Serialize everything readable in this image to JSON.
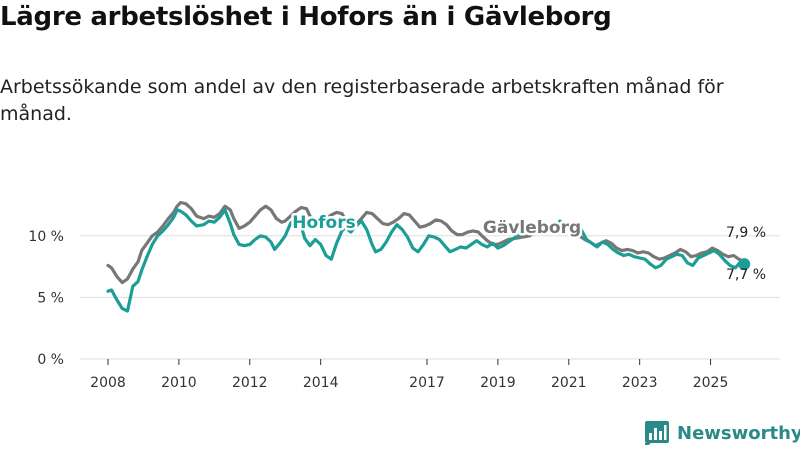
{
  "title": "Lägre arbetslöshet i Hofors än i Gävleborg",
  "subtitle": "Arbetssökande som andel av den registerbaserade arbetskraften månad för månad.",
  "brand": {
    "name": "Newsworthy",
    "color": "#2a8a89",
    "icon": "bar-chart-logo-icon"
  },
  "chart_data": {
    "type": "line",
    "title": "Lägre arbetslöshet i Hofors än i Gävleborg",
    "xlabel": "",
    "ylabel": "",
    "xlim": [
      2008,
      2026
    ],
    "ylim": [
      0,
      12.5
    ],
    "y_ticks": [
      {
        "value": 0,
        "label": "0 %"
      },
      {
        "value": 5,
        "label": "5 %"
      },
      {
        "value": 10,
        "label": "10 %"
      }
    ],
    "x_ticks": [
      {
        "value": 2008,
        "label": "2008"
      },
      {
        "value": 2010,
        "label": "2010"
      },
      {
        "value": 2012,
        "label": "2012"
      },
      {
        "value": 2014,
        "label": "2014"
      },
      {
        "value": 2017,
        "label": "2017"
      },
      {
        "value": 2019,
        "label": "2019"
      },
      {
        "value": 2021,
        "label": "2021"
      },
      {
        "value": 2023,
        "label": "2023"
      },
      {
        "value": 2025,
        "label": "2025"
      }
    ],
    "grid": true,
    "series": [
      {
        "name": "Gävleborg",
        "color": "#777777",
        "label_at": [
          2008.0,
          10.0
        ],
        "end_label": "7,9 %",
        "points": [
          [
            2008.0,
            7.6
          ],
          [
            2008.1,
            7.4
          ],
          [
            2008.25,
            6.7
          ],
          [
            2008.4,
            6.2
          ],
          [
            2008.55,
            6.5
          ],
          [
            2008.7,
            7.3
          ],
          [
            2008.85,
            7.9
          ],
          [
            2008.95,
            8.8
          ],
          [
            2009.1,
            9.4
          ],
          [
            2009.25,
            10.0
          ],
          [
            2009.4,
            10.3
          ],
          [
            2009.55,
            10.8
          ],
          [
            2009.7,
            11.4
          ],
          [
            2009.85,
            11.9
          ],
          [
            2009.95,
            12.4
          ],
          [
            2010.05,
            12.7
          ],
          [
            2010.2,
            12.6
          ],
          [
            2010.35,
            12.2
          ],
          [
            2010.5,
            11.6
          ],
          [
            2010.7,
            11.4
          ],
          [
            2010.85,
            11.6
          ],
          [
            2011.0,
            11.5
          ],
          [
            2011.15,
            11.8
          ],
          [
            2011.3,
            12.4
          ],
          [
            2011.45,
            12.1
          ],
          [
            2011.55,
            11.4
          ],
          [
            2011.7,
            10.6
          ],
          [
            2011.85,
            10.8
          ],
          [
            2012.0,
            11.1
          ],
          [
            2012.15,
            11.6
          ],
          [
            2012.3,
            12.1
          ],
          [
            2012.45,
            12.4
          ],
          [
            2012.6,
            12.1
          ],
          [
            2012.75,
            11.4
          ],
          [
            2012.9,
            11.1
          ],
          [
            2013.0,
            11.2
          ],
          [
            2013.15,
            11.6
          ],
          [
            2013.3,
            12.0
          ],
          [
            2013.45,
            12.3
          ],
          [
            2013.6,
            12.2
          ],
          [
            2013.7,
            11.6
          ],
          [
            2013.85,
            11.0
          ],
          [
            2014.0,
            11.2
          ],
          [
            2014.15,
            11.4
          ],
          [
            2014.3,
            11.7
          ],
          [
            2014.45,
            11.9
          ],
          [
            2014.6,
            11.8
          ],
          [
            2014.7,
            11.3
          ],
          [
            2014.85,
            10.9
          ],
          [
            2015.0,
            10.9
          ],
          [
            2015.15,
            11.4
          ],
          [
            2015.3,
            11.9
          ],
          [
            2015.45,
            11.8
          ],
          [
            2015.6,
            11.4
          ],
          [
            2015.75,
            11.0
          ],
          [
            2015.9,
            10.9
          ],
          [
            2016.05,
            11.1
          ],
          [
            2016.2,
            11.4
          ],
          [
            2016.35,
            11.8
          ],
          [
            2016.5,
            11.7
          ],
          [
            2016.65,
            11.2
          ],
          [
            2016.8,
            10.7
          ],
          [
            2016.95,
            10.8
          ],
          [
            2017.1,
            11.0
          ],
          [
            2017.25,
            11.3
          ],
          [
            2017.4,
            11.2
          ],
          [
            2017.55,
            10.9
          ],
          [
            2017.7,
            10.4
          ],
          [
            2017.85,
            10.1
          ],
          [
            2018.0,
            10.1
          ],
          [
            2018.15,
            10.3
          ],
          [
            2018.3,
            10.4
          ],
          [
            2018.45,
            10.3
          ],
          [
            2018.55,
            10.0
          ],
          [
            2018.7,
            9.6
          ],
          [
            2018.85,
            9.3
          ],
          [
            2019.0,
            9.3
          ],
          [
            2019.15,
            9.5
          ],
          [
            2019.3,
            9.7
          ],
          [
            2019.5,
            9.8
          ],
          [
            2019.7,
            9.9
          ],
          [
            2019.9,
            10.0
          ],
          [
            2020.1,
            10.4
          ],
          [
            2020.25,
            10.7
          ],
          [
            2020.4,
            10.7
          ],
          [
            2020.55,
            10.9
          ],
          [
            2020.7,
            10.6
          ],
          [
            2020.85,
            10.5
          ],
          [
            2021.0,
            10.6
          ],
          [
            2021.15,
            10.4
          ],
          [
            2021.3,
            10.0
          ],
          [
            2021.45,
            9.7
          ],
          [
            2021.6,
            9.5
          ],
          [
            2021.75,
            9.2
          ],
          [
            2021.9,
            9.4
          ],
          [
            2022.05,
            9.6
          ],
          [
            2022.2,
            9.4
          ],
          [
            2022.35,
            9.0
          ],
          [
            2022.5,
            8.8
          ],
          [
            2022.65,
            8.9
          ],
          [
            2022.8,
            8.8
          ],
          [
            2022.95,
            8.6
          ],
          [
            2023.1,
            8.7
          ],
          [
            2023.25,
            8.6
          ],
          [
            2023.4,
            8.3
          ],
          [
            2023.55,
            8.1
          ],
          [
            2023.7,
            8.2
          ],
          [
            2023.85,
            8.4
          ],
          [
            2024.0,
            8.6
          ],
          [
            2024.15,
            8.9
          ],
          [
            2024.3,
            8.7
          ],
          [
            2024.45,
            8.3
          ],
          [
            2024.6,
            8.4
          ],
          [
            2024.75,
            8.6
          ],
          [
            2024.9,
            8.7
          ],
          [
            2025.05,
            9.0
          ],
          [
            2025.2,
            8.8
          ],
          [
            2025.35,
            8.5
          ],
          [
            2025.5,
            8.3
          ],
          [
            2025.65,
            8.4
          ],
          [
            2025.8,
            8.1
          ],
          [
            2025.95,
            7.9
          ]
        ]
      },
      {
        "name": "Hofors",
        "color": "#1b9e96",
        "label_at": [
          2008.0,
          10.0
        ],
        "end_label": "7,7 %",
        "points": [
          [
            2008.0,
            5.5
          ],
          [
            2008.1,
            5.6
          ],
          [
            2008.25,
            4.8
          ],
          [
            2008.4,
            4.1
          ],
          [
            2008.55,
            3.9
          ],
          [
            2008.7,
            5.9
          ],
          [
            2008.85,
            6.3
          ],
          [
            2008.95,
            7.2
          ],
          [
            2009.1,
            8.3
          ],
          [
            2009.25,
            9.3
          ],
          [
            2009.4,
            10.0
          ],
          [
            2009.55,
            10.4
          ],
          [
            2009.7,
            10.9
          ],
          [
            2009.85,
            11.5
          ],
          [
            2009.95,
            12.1
          ],
          [
            2010.05,
            12.0
          ],
          [
            2010.2,
            11.7
          ],
          [
            2010.35,
            11.2
          ],
          [
            2010.5,
            10.8
          ],
          [
            2010.7,
            10.9
          ],
          [
            2010.85,
            11.2
          ],
          [
            2011.0,
            11.1
          ],
          [
            2011.15,
            11.5
          ],
          [
            2011.3,
            12.1
          ],
          [
            2011.45,
            11.0
          ],
          [
            2011.55,
            10.1
          ],
          [
            2011.7,
            9.3
          ],
          [
            2011.85,
            9.2
          ],
          [
            2012.0,
            9.3
          ],
          [
            2012.15,
            9.7
          ],
          [
            2012.3,
            10.0
          ],
          [
            2012.45,
            9.9
          ],
          [
            2012.6,
            9.5
          ],
          [
            2012.7,
            8.9
          ],
          [
            2012.85,
            9.4
          ],
          [
            2013.0,
            10.0
          ],
          [
            2013.15,
            11.0
          ],
          [
            2013.3,
            11.5
          ],
          [
            2013.4,
            11.3
          ],
          [
            2013.55,
            9.8
          ],
          [
            2013.7,
            9.2
          ],
          [
            2013.85,
            9.7
          ],
          [
            2014.0,
            9.3
          ],
          [
            2014.15,
            8.4
          ],
          [
            2014.3,
            8.1
          ],
          [
            2014.45,
            9.4
          ],
          [
            2014.6,
            10.4
          ],
          [
            2014.7,
            10.7
          ],
          [
            2014.85,
            10.3
          ],
          [
            2015.0,
            10.8
          ],
          [
            2015.15,
            11.2
          ],
          [
            2015.3,
            10.5
          ],
          [
            2015.45,
            9.3
          ],
          [
            2015.55,
            8.7
          ],
          [
            2015.7,
            8.9
          ],
          [
            2015.85,
            9.5
          ],
          [
            2016.0,
            10.3
          ],
          [
            2016.15,
            10.9
          ],
          [
            2016.3,
            10.5
          ],
          [
            2016.45,
            9.9
          ],
          [
            2016.6,
            9.0
          ],
          [
            2016.75,
            8.7
          ],
          [
            2016.9,
            9.3
          ],
          [
            2017.05,
            10.0
          ],
          [
            2017.2,
            9.9
          ],
          [
            2017.35,
            9.7
          ],
          [
            2017.5,
            9.2
          ],
          [
            2017.65,
            8.7
          ],
          [
            2017.8,
            8.9
          ],
          [
            2017.95,
            9.1
          ],
          [
            2018.1,
            9.0
          ],
          [
            2018.25,
            9.3
          ],
          [
            2018.4,
            9.6
          ],
          [
            2018.55,
            9.3
          ],
          [
            2018.7,
            9.1
          ],
          [
            2018.85,
            9.4
          ],
          [
            2019.0,
            9.0
          ],
          [
            2019.15,
            9.2
          ],
          [
            2019.3,
            9.5
          ],
          [
            2019.5,
            9.9
          ],
          [
            2019.7,
            10.2
          ],
          [
            2019.85,
            10.4
          ],
          [
            2020.0,
            10.5
          ],
          [
            2020.15,
            10.3
          ],
          [
            2020.3,
            10.9
          ],
          [
            2020.45,
            10.8
          ],
          [
            2020.6,
            10.5
          ],
          [
            2020.75,
            11.2
          ],
          [
            2020.9,
            10.8
          ],
          [
            2021.05,
            10.5
          ],
          [
            2021.2,
            10.9
          ],
          [
            2021.35,
            10.5
          ],
          [
            2021.5,
            9.7
          ],
          [
            2021.65,
            9.4
          ],
          [
            2021.8,
            9.1
          ],
          [
            2021.95,
            9.5
          ],
          [
            2022.1,
            9.3
          ],
          [
            2022.25,
            8.9
          ],
          [
            2022.4,
            8.6
          ],
          [
            2022.55,
            8.4
          ],
          [
            2022.7,
            8.5
          ],
          [
            2022.85,
            8.3
          ],
          [
            2023.0,
            8.2
          ],
          [
            2023.15,
            8.1
          ],
          [
            2023.3,
            7.7
          ],
          [
            2023.45,
            7.4
          ],
          [
            2023.6,
            7.6
          ],
          [
            2023.75,
            8.1
          ],
          [
            2023.9,
            8.3
          ],
          [
            2024.05,
            8.5
          ],
          [
            2024.2,
            8.4
          ],
          [
            2024.35,
            7.8
          ],
          [
            2024.5,
            7.6
          ],
          [
            2024.65,
            8.2
          ],
          [
            2024.8,
            8.4
          ],
          [
            2024.95,
            8.6
          ],
          [
            2025.1,
            8.8
          ],
          [
            2025.25,
            8.5
          ],
          [
            2025.4,
            8.0
          ],
          [
            2025.55,
            7.6
          ],
          [
            2025.7,
            7.4
          ],
          [
            2025.85,
            7.9
          ],
          [
            2025.95,
            7.7
          ]
        ]
      }
    ]
  }
}
